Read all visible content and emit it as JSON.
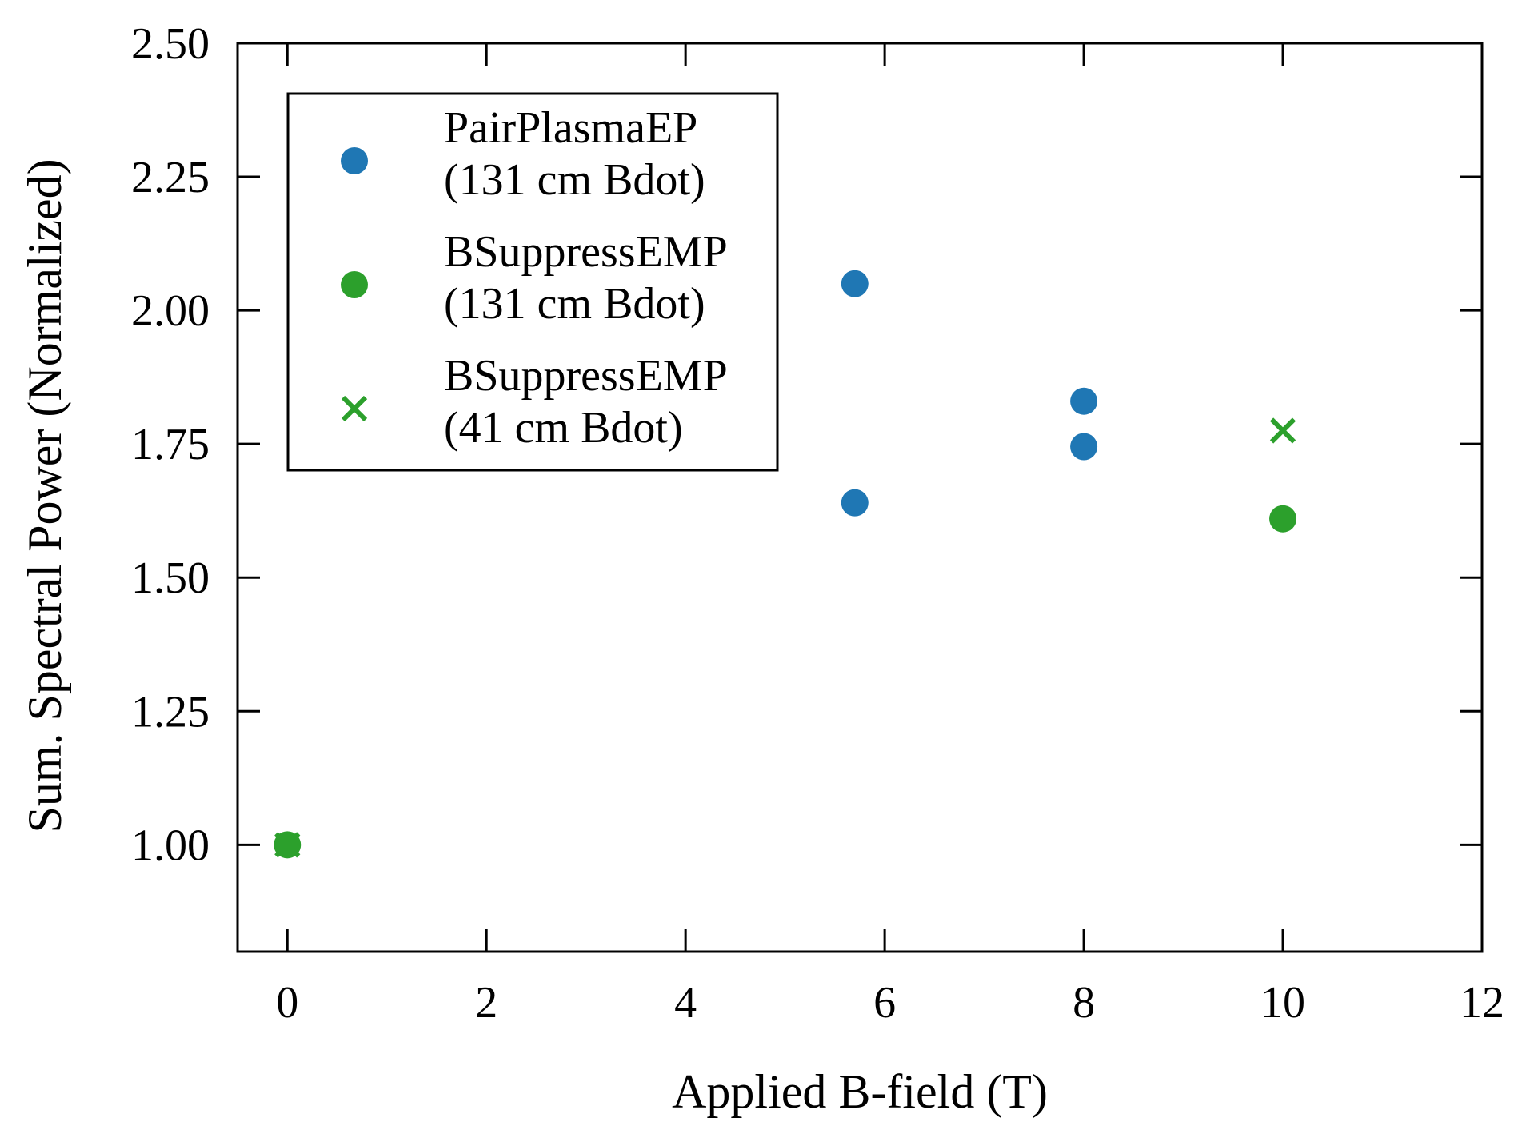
{
  "chart_data": {
    "type": "scatter",
    "title": "",
    "xlabel": "Applied B-field (T)",
    "ylabel": "Sum. Spectral Power (Normalized)",
    "xlim": [
      -0.5,
      12
    ],
    "ylim": [
      0.8,
      2.5
    ],
    "xticks": [
      0,
      2,
      4,
      6,
      8,
      10,
      12
    ],
    "xtick_labels": [
      "0",
      "2",
      "4",
      "6",
      "8",
      "10",
      "12"
    ],
    "yticks": [
      1.0,
      1.25,
      1.5,
      1.75,
      2.0,
      2.25,
      2.5
    ],
    "ytick_labels": [
      "1.00",
      "1.25",
      "1.50",
      "1.75",
      "2.00",
      "2.25",
      "2.50"
    ],
    "grid": false,
    "legend_position": "top-left",
    "series": [
      {
        "name": "PairPlasmaEP (131 cm Bdot)",
        "legend_lines": [
          "PairPlasmaEP",
          "(131 cm Bdot)"
        ],
        "marker": "circle",
        "color": "#1f77b4",
        "x": [
          5.7,
          5.7,
          8.0,
          8.0
        ],
        "y": [
          2.05,
          1.64,
          1.83,
          1.745
        ]
      },
      {
        "name": "BSuppressEMP (131 cm Bdot)",
        "legend_lines": [
          "BSuppressEMP",
          "(131 cm Bdot)"
        ],
        "marker": "circle",
        "color": "#2ca02c",
        "x": [
          0,
          10
        ],
        "y": [
          1.0,
          1.61
        ]
      },
      {
        "name": "BSuppressEMP (41 cm Bdot)",
        "legend_lines": [
          "BSuppressEMP",
          "(41 cm Bdot)"
        ],
        "marker": "x",
        "color": "#2ca02c",
        "x": [
          0,
          10
        ],
        "y": [
          1.0,
          1.775
        ]
      }
    ]
  }
}
